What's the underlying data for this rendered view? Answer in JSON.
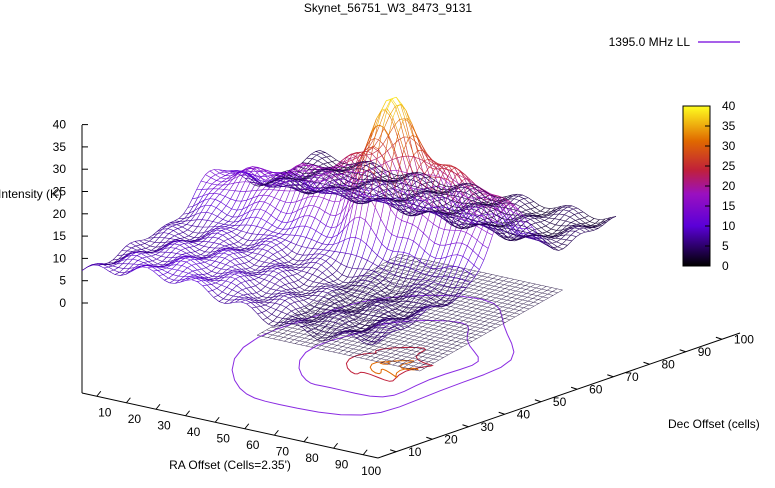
{
  "chart_data": {
    "type": "surface3d",
    "title": "Skynet_56751_W3_8473_9131",
    "zlabel": "Intensity (K)",
    "xlabel": "RA Offset (Cells=2.35')",
    "ylabel": "Dec Offset (cells)",
    "legend": {
      "label": "1395.0 MHz LL",
      "position": "top-right"
    },
    "zlim": [
      0,
      40
    ],
    "z_ticks": [
      "0",
      "5",
      "10",
      "15",
      "20",
      "25",
      "30",
      "35",
      "40"
    ],
    "x_ticks": [
      "10",
      "20",
      "30",
      "40",
      "50",
      "60",
      "70",
      "80",
      "90",
      "100"
    ],
    "y_ticks": [
      "10",
      "20",
      "30",
      "40",
      "50",
      "60",
      "70",
      "80",
      "90",
      "100"
    ],
    "colorbar": {
      "range": [
        0,
        40
      ],
      "ticks": [
        "0",
        "5",
        "10",
        "15",
        "20",
        "25",
        "30",
        "35",
        "40"
      ]
    },
    "grid": false,
    "surface_profile": {
      "description_free": true,
      "peak_z": 39.5,
      "ridge_z": 26,
      "near_edge_z": [
        8,
        12,
        14,
        11,
        6
      ],
      "far_edge_z": [
        3,
        3.5,
        3,
        3,
        3
      ]
    },
    "colors": {
      "low": "#000000",
      "mid_low": "#7a00ff",
      "mid": "#b01060",
      "mid_high": "#e05a00",
      "high": "#ffff20",
      "legend_line": "#8a2be2"
    }
  }
}
